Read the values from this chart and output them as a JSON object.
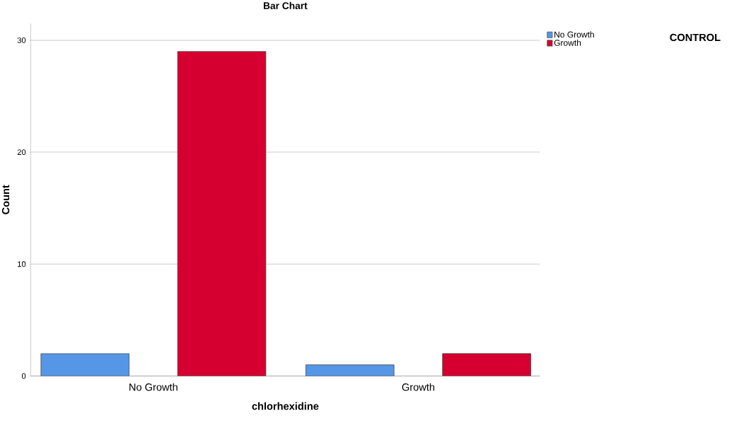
{
  "chart_data": {
    "type": "bar",
    "title": "Bar Chart",
    "xlabel": "chlorhexidine",
    "ylabel": "Count",
    "legend_title": "CONTROL",
    "categories": [
      "No Growth",
      "Growth"
    ],
    "series": [
      {
        "name": "No Growth",
        "color": "#5596e6",
        "values": [
          2,
          1
        ]
      },
      {
        "name": "Growth",
        "color": "#d5002f",
        "values": [
          29,
          2
        ]
      }
    ],
    "ylim": [
      0,
      31.5
    ],
    "yticks": [
      0,
      10,
      20,
      30
    ],
    "grid": "y",
    "legend": "top right"
  }
}
